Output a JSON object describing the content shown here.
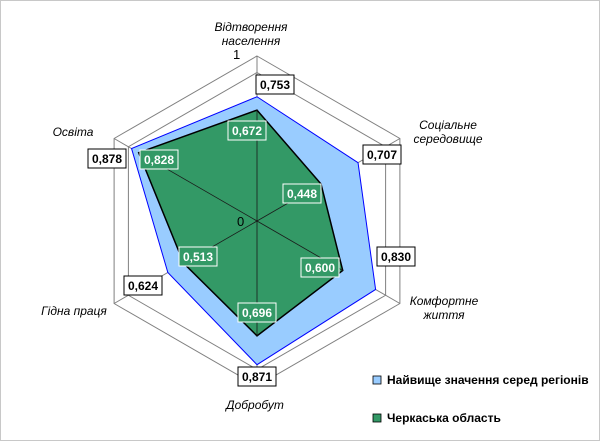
{
  "chart_data": {
    "type": "radar",
    "axes": [
      [
        "Відтворення",
        "населення"
      ],
      [
        "Соціальне",
        "середовище"
      ],
      [
        "Комфортне",
        "життя"
      ],
      [
        "Добробут"
      ],
      [
        "Гідна праця"
      ],
      [
        "Освіта"
      ]
    ],
    "rlim": [
      0,
      1
    ],
    "tick_labels": [
      "0",
      "1"
    ],
    "grid": true,
    "series": [
      {
        "name": "Найвище значення серед регіонів",
        "values": [
          0.753,
          0.707,
          0.83,
          0.871,
          0.624,
          0.878
        ],
        "labels": [
          "0,753",
          "0,707",
          "0,830",
          "0,871",
          "0,624",
          "0,878"
        ],
        "color": "#99ccff",
        "stroke": "#0000ff"
      },
      {
        "name": "Черкаська область",
        "values": [
          0.672,
          0.448,
          0.6,
          0.696,
          0.513,
          0.828
        ],
        "labels": [
          "0,672",
          "0,448",
          "0,600",
          "0,696",
          "0,513",
          "0,828"
        ],
        "color": "#339966",
        "stroke": "#000000"
      }
    ],
    "legend_position": "bottom-right"
  }
}
